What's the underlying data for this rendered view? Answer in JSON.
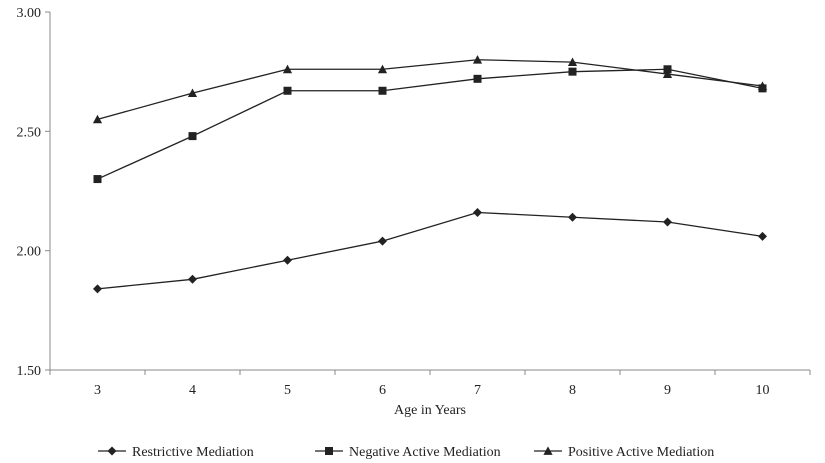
{
  "chart_data": {
    "type": "line",
    "x": [
      3,
      4,
      5,
      6,
      7,
      8,
      9,
      10
    ],
    "categories": [
      "3",
      "4",
      "5",
      "6",
      "7",
      "8",
      "9",
      "10"
    ],
    "xlabel": "Age in Years",
    "ylabel": "",
    "ylim": [
      1.5,
      3.0
    ],
    "yticks": [
      "1.50",
      "2.00",
      "2.50",
      "3.00"
    ],
    "ytick_values": [
      1.5,
      2.0,
      2.5,
      3.0
    ],
    "grid": false,
    "legend_position": "bottom",
    "series": [
      {
        "name": "Restrictive Mediation",
        "marker": "diamond",
        "values": [
          1.84,
          1.88,
          1.96,
          2.04,
          2.16,
          2.14,
          2.12,
          2.06
        ]
      },
      {
        "name": "Negative Active Mediation",
        "marker": "square",
        "values": [
          2.3,
          2.48,
          2.67,
          2.67,
          2.72,
          2.75,
          2.76,
          2.68
        ]
      },
      {
        "name": "Positive Active Mediation",
        "marker": "triangle",
        "values": [
          2.55,
          2.66,
          2.76,
          2.76,
          2.8,
          2.79,
          2.74,
          2.69
        ]
      }
    ],
    "colors": {
      "line": "#222222",
      "axis": "#888888"
    }
  }
}
